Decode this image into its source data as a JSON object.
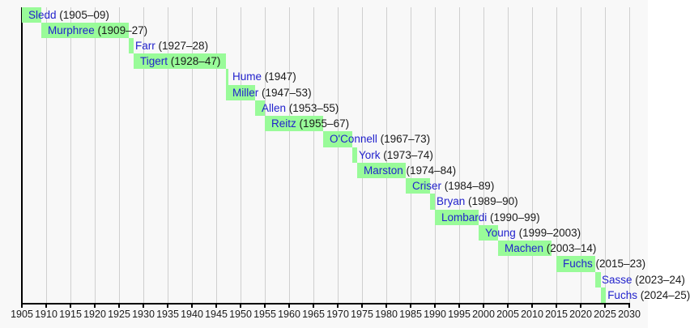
{
  "chart_data": {
    "type": "bar",
    "variant": "horizontal timeline (gantt-style tenure chart)",
    "title": "",
    "legend_position": "none",
    "grid": "vertical gridlines at every 5-year tick",
    "x_axis": {
      "min": 1905,
      "max": 2030,
      "tick_interval": 5,
      "tick_labels": [
        "1905",
        "1910",
        "1915",
        "1920",
        "1925",
        "1930",
        "1935",
        "1940",
        "1945",
        "1950",
        "1955",
        "1960",
        "1965",
        "1970",
        "1975",
        "1980",
        "1985",
        "1990",
        "1995",
        "2000",
        "2005",
        "2010",
        "2015",
        "2020",
        "2025",
        "2030"
      ]
    },
    "bars": [
      {
        "name": "Sledd",
        "years_label": "(1905–09)",
        "start": 1905,
        "end": 1909
      },
      {
        "name": "Murphree",
        "years_label": "(1909–27)",
        "start": 1909,
        "end": 1927
      },
      {
        "name": "Farr",
        "years_label": "(1927–28)",
        "start": 1927,
        "end": 1928
      },
      {
        "name": "Tigert",
        "years_label": "(1928–47)",
        "start": 1928,
        "end": 1947
      },
      {
        "name": "Hume",
        "years_label": "(1947)",
        "start": 1947,
        "end": 1947.5
      },
      {
        "name": "Miller",
        "years_label": "(1947–53)",
        "start": 1947,
        "end": 1953
      },
      {
        "name": "Allen",
        "years_label": "(1953–55)",
        "start": 1953,
        "end": 1955
      },
      {
        "name": "Reitz",
        "years_label": "(1955–67)",
        "start": 1955,
        "end": 1967
      },
      {
        "name": "O'Connell",
        "years_label": "(1967–73)",
        "start": 1967,
        "end": 1973
      },
      {
        "name": "York",
        "years_label": "(1973–74)",
        "start": 1973,
        "end": 1974
      },
      {
        "name": "Marston",
        "years_label": "(1974–84)",
        "start": 1974,
        "end": 1984
      },
      {
        "name": "Criser",
        "years_label": "(1984–89)",
        "start": 1984,
        "end": 1989
      },
      {
        "name": "Bryan",
        "years_label": "(1989–90)",
        "start": 1989,
        "end": 1990
      },
      {
        "name": "Lombardi",
        "years_label": "(1990–99)",
        "start": 1990,
        "end": 1999
      },
      {
        "name": "Young",
        "years_label": "(1999–2003)",
        "start": 1999,
        "end": 2003
      },
      {
        "name": "Machen",
        "years_label": "(2003–14)",
        "start": 2003,
        "end": 2014
      },
      {
        "name": "Fuchs",
        "years_label": "(2015–23)",
        "start": 2015,
        "end": 2023
      },
      {
        "name": "Sasse",
        "years_label": "(2023–24)",
        "start": 2023,
        "end": 2024.2,
        "label_clipped_at_right_edge": true
      },
      {
        "name": "Fuchs",
        "years_label": "(2024–25)",
        "start": 2024.2,
        "end": 2025.2,
        "label_clipped_at_right_edge": true
      }
    ]
  },
  "colors": {
    "background": "#F8F8F8",
    "bar_fill": "#99FB99",
    "gridline": "#CFCFCF",
    "axis": "#000000",
    "link_text": "#2222CC",
    "plain_text": "#1A1A1A"
  }
}
